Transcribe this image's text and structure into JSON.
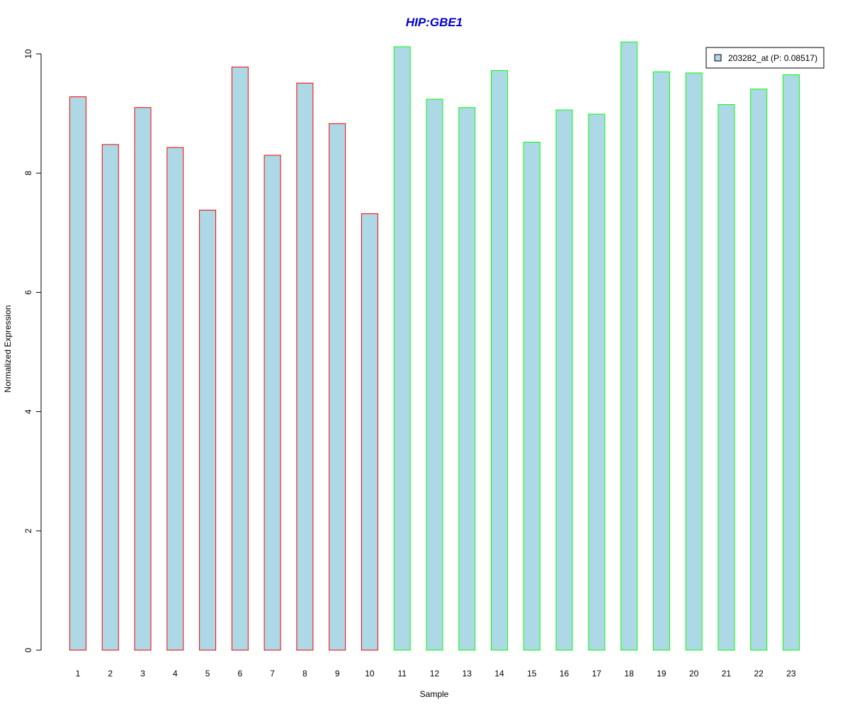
{
  "chart_data": {
    "type": "bar",
    "title": "HIP:GBE1",
    "xlabel": "Sample",
    "ylabel": "Normalized Expression",
    "categories": [
      "1",
      "2",
      "3",
      "4",
      "5",
      "6",
      "7",
      "8",
      "9",
      "10",
      "11",
      "12",
      "13",
      "14",
      "15",
      "16",
      "17",
      "18",
      "19",
      "20",
      "21",
      "22",
      "23"
    ],
    "series": [
      {
        "name": "203282_at (P: 0.08517)",
        "values": [
          9.28,
          8.48,
          9.1,
          8.43,
          7.38,
          9.78,
          8.3,
          9.51,
          8.83,
          7.32,
          10.12,
          9.24,
          9.1,
          9.72,
          8.52,
          9.06,
          8.99,
          10.2,
          9.7,
          9.68,
          9.15,
          9.41,
          9.65
        ]
      }
    ],
    "group_colors": [
      "#ff0000",
      "#ff0000",
      "#ff0000",
      "#ff0000",
      "#ff0000",
      "#ff0000",
      "#ff0000",
      "#ff0000",
      "#ff0000",
      "#ff0000",
      "#00ff00",
      "#00ff00",
      "#00ff00",
      "#00ff00",
      "#00ff00",
      "#00ff00",
      "#00ff00",
      "#00ff00",
      "#00ff00",
      "#00ff00",
      "#00ff00",
      "#00ff00",
      "#00ff00"
    ],
    "fill_color": "#add8e6",
    "title_color": "#0000cd",
    "ylim": [
      0,
      10
    ],
    "yticks": [
      "0",
      "2",
      "4",
      "6",
      "8",
      "10"
    ],
    "grid": false,
    "legend_position": "top-right"
  }
}
